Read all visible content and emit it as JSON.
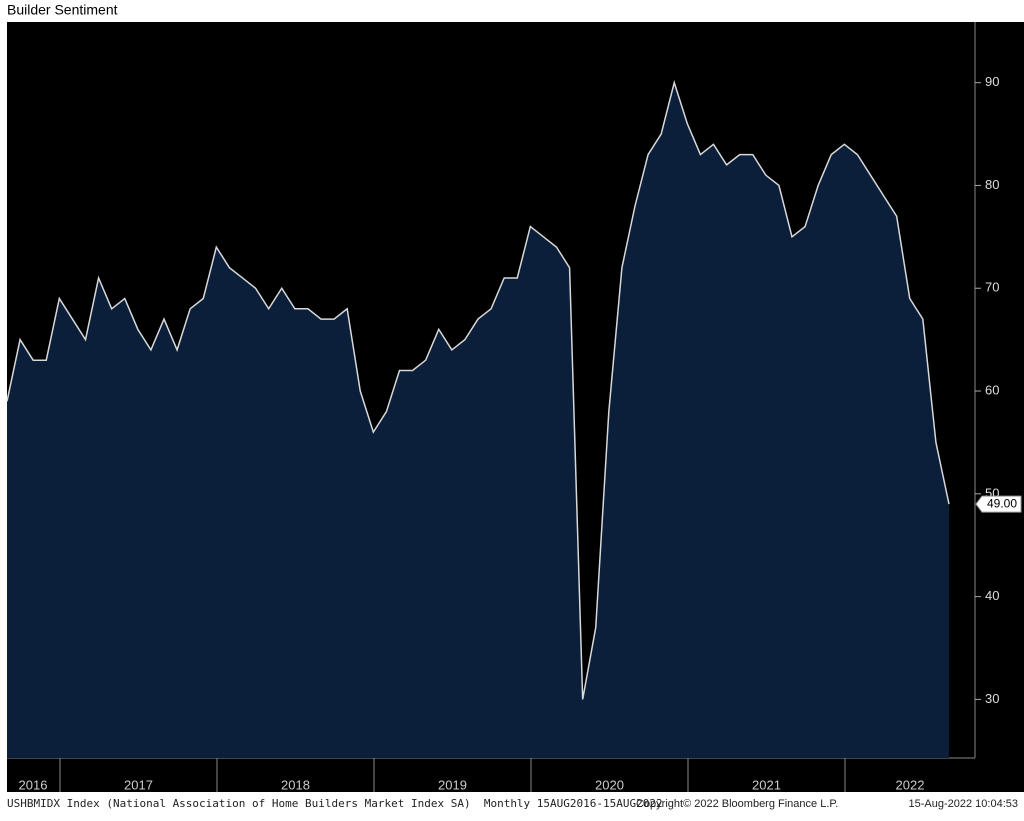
{
  "chart_data": {
    "type": "area",
    "title": "Builder Sentiment",
    "series": [
      {
        "name": "USHBMIDX Index",
        "color": "#0b1e3a",
        "line_color": "#d8d8d8",
        "values": [
          59,
          65,
          63,
          63,
          69,
          67,
          65,
          71,
          68,
          69,
          66,
          64,
          67,
          64,
          68,
          69,
          74,
          72,
          71,
          70,
          68,
          70,
          68,
          68,
          67,
          67,
          68,
          60,
          56,
          58,
          62,
          62,
          63,
          66,
          64,
          65,
          67,
          68,
          71,
          71,
          76,
          75,
          74,
          72,
          30,
          37,
          58,
          72,
          78,
          83,
          85,
          90,
          86,
          83,
          84,
          82,
          83,
          83,
          81,
          80,
          75,
          76,
          80,
          83,
          84,
          83,
          81,
          79,
          77,
          69,
          67,
          55,
          49
        ],
        "value_labels": [
          null,
          null,
          null,
          null,
          null,
          null,
          null,
          null,
          null,
          null,
          null,
          null,
          null,
          null,
          null,
          null,
          null,
          null,
          null,
          null,
          null,
          null,
          null,
          null,
          null,
          null,
          null,
          null,
          null,
          null,
          null,
          null,
          null,
          null,
          null,
          null,
          null,
          null,
          null,
          null,
          null,
          null,
          null,
          null,
          null,
          null,
          null,
          null,
          null,
          null,
          null,
          null,
          null,
          null,
          null,
          null,
          null,
          null,
          null,
          null,
          null,
          null,
          null,
          null,
          null,
          null,
          null,
          null,
          null,
          null,
          null,
          null,
          "49.00"
        ]
      }
    ],
    "x_year_labels": [
      "2016",
      "2017",
      "2018",
      "2019",
      "2020",
      "2021",
      "2022"
    ],
    "ylim": [
      24.3,
      95.9
    ],
    "yticks": [
      30,
      40,
      50,
      60,
      70,
      80,
      90
    ],
    "footer": {
      "source": "USHBMIDX Index (National Association of Home Builders Market Index SA)  Monthly 15AUG2016-15AUG2022",
      "copyright": "Copyright© 2022 Bloomberg Finance L.P.",
      "timestamp": "15-Aug-2022 10:04:53"
    }
  }
}
